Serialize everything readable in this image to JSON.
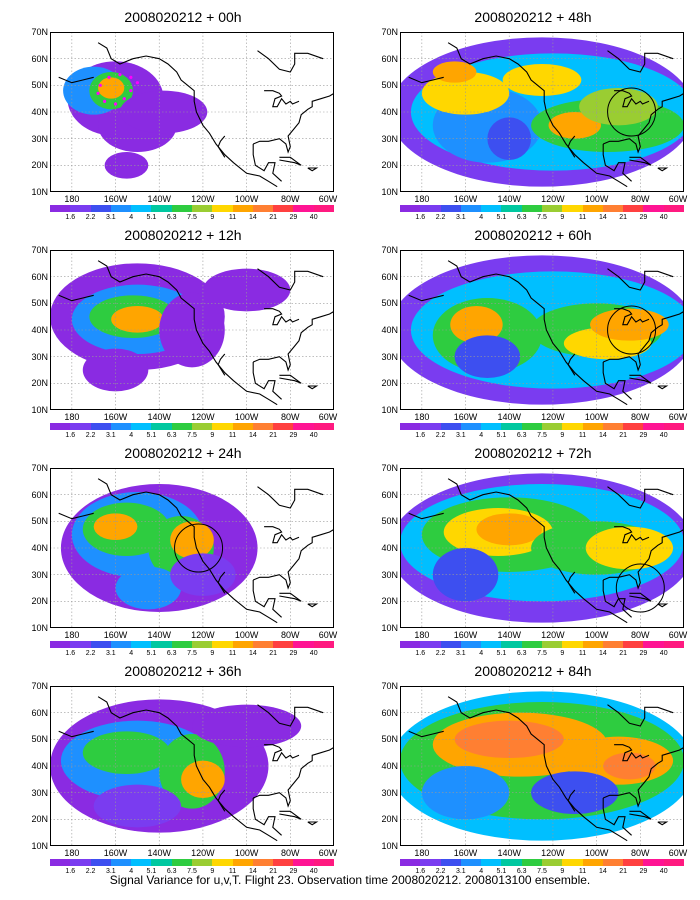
{
  "panels": [
    {
      "title": "2008020212 + 00h"
    },
    {
      "title": "2008020212 + 48h"
    },
    {
      "title": "2008020212 + 12h"
    },
    {
      "title": "2008020212 + 60h"
    },
    {
      "title": "2008020212 + 24h"
    },
    {
      "title": "2008020212 + 72h"
    },
    {
      "title": "2008020212 + 36h"
    },
    {
      "title": "2008020212 + 84h"
    }
  ],
  "lat_labels": [
    "70N",
    "60N",
    "50N",
    "40N",
    "30N",
    "20N",
    "10N"
  ],
  "lon_labels": [
    "180",
    "160W",
    "140W",
    "120W",
    "100W",
    "80W",
    "60W"
  ],
  "colorbar": {
    "labels": [
      "1.6",
      "2.2",
      "3.1",
      "4",
      "5.1",
      "6.3",
      "7.5",
      "9",
      "11",
      "14",
      "21",
      "29",
      "40"
    ],
    "colors": [
      "#8a2be2",
      "#7a3cf0",
      "#3d4ff0",
      "#1e90ff",
      "#00bfff",
      "#00c8a0",
      "#2ecc40",
      "#9acd32",
      "#ffd700",
      "#ffa500",
      "#ff7f32",
      "#ff4040",
      "#ff1493",
      "#ff1a80"
    ]
  },
  "caption": "Signal Variance for u,v,T. Flight 23. Observation time 2008020212. 2008013100 ensemble."
}
